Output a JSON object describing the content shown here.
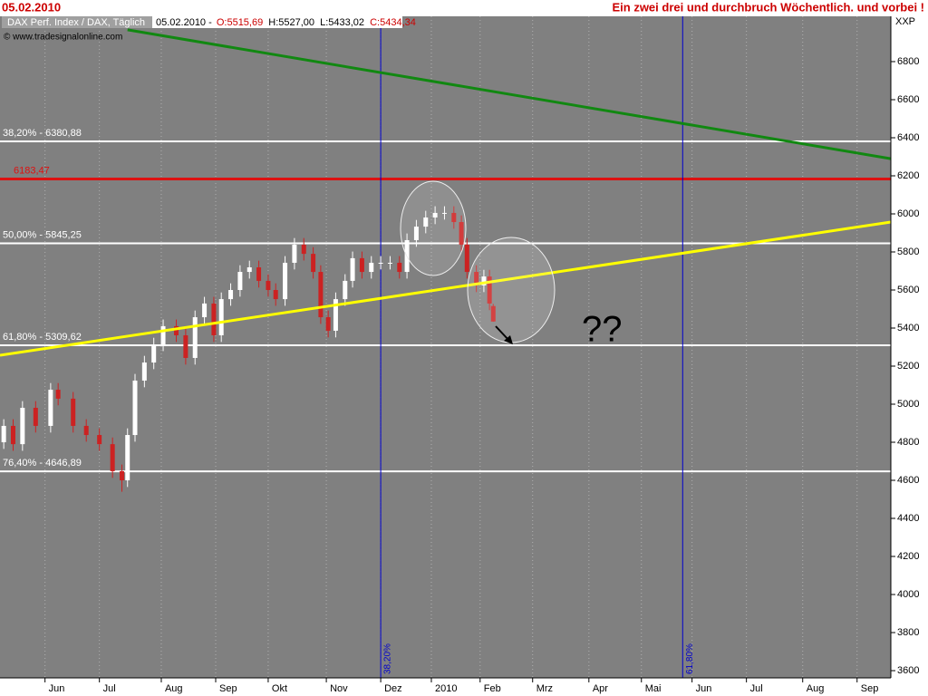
{
  "chart_data": {
    "type": "candlestick",
    "date": "05.02.2010",
    "title": "Ein zwei drei und durchbruch  Wöchentlich. und vorbei !",
    "instrument": "DAX Perf. Index / DAX, Täglich",
    "ohlc_header": [
      "05.02.2010 -",
      "O:5515,69",
      "H:5527,00",
      "L:5433,02",
      "C:5434,34"
    ],
    "copyright": "© www.tradesignalonline.com",
    "axis_unit": "XXP",
    "annotation": "??",
    "up_color": "#ffffff",
    "down_color": "#cc2222",
    "x": [
      2,
      7,
      12,
      19,
      27,
      31,
      39,
      46,
      53,
      60,
      65,
      68,
      72,
      77,
      82,
      87,
      94,
      99,
      104,
      109,
      114,
      118,
      123,
      128,
      133,
      138,
      143,
      147,
      152,
      157,
      162,
      167,
      171,
      175,
      179,
      184,
      188,
      193,
      198,
      203,
      208,
      213,
      217,
      222,
      227,
      232,
      237,
      242,
      246,
      249,
      254,
      258,
      261,
      263
    ],
    "open": [
      4800,
      4886,
      4790,
      4981,
      4886,
      5076,
      5029,
      4886,
      4838,
      4790,
      4648,
      4600,
      4838,
      5124,
      5219,
      5314,
      5410,
      5362,
      5243,
      5457,
      5529,
      5362,
      5552,
      5600,
      5695,
      5719,
      5648,
      5600,
      5552,
      5743,
      5838,
      5790,
      5695,
      5457,
      5386,
      5552,
      5648,
      5767,
      5695,
      5743,
      5743,
      5743,
      5695,
      5862,
      5933,
      5981,
      6005,
      6005,
      5957,
      5838,
      5695,
      5624,
      5671,
      5515.69
    ],
    "high": [
      4921,
      4921,
      5016,
      5016,
      5111,
      5111,
      5064,
      4921,
      4873,
      4825,
      4683,
      4873,
      5159,
      5254,
      5349,
      5445,
      5445,
      5397,
      5492,
      5564,
      5564,
      5587,
      5635,
      5730,
      5754,
      5754,
      5683,
      5635,
      5778,
      5873,
      5873,
      5825,
      5730,
      5492,
      5587,
      5683,
      5802,
      5802,
      5778,
      5778,
      5778,
      5778,
      5897,
      5968,
      6016,
      6040,
      6040,
      6040,
      5992,
      5873,
      5730,
      5706,
      5706,
      5527
    ],
    "low": [
      4765,
      4755,
      4755,
      4851,
      4851,
      4994,
      4851,
      4803,
      4755,
      4613,
      4540,
      4565,
      4803,
      5089,
      5184,
      5279,
      5327,
      5208,
      5208,
      5422,
      5327,
      5327,
      5517,
      5565,
      5660,
      5613,
      5565,
      5517,
      5517,
      5708,
      5755,
      5660,
      5422,
      5351,
      5351,
      5517,
      5613,
      5660,
      5660,
      5708,
      5708,
      5660,
      5660,
      5827,
      5898,
      5946,
      5970,
      5922,
      5803,
      5660,
      5589,
      5589,
      5494,
      5433.02
    ],
    "close": [
      4886,
      4790,
      4981,
      4886,
      5076,
      5029,
      4886,
      4838,
      4790,
      4648,
      4600,
      4838,
      5124,
      5219,
      5314,
      5410,
      5362,
      5243,
      5457,
      5529,
      5362,
      5552,
      5600,
      5695,
      5719,
      5648,
      5600,
      5552,
      5743,
      5838,
      5790,
      5695,
      5457,
      5386,
      5552,
      5648,
      5767,
      5695,
      5743,
      5743,
      5743,
      5695,
      5862,
      5933,
      5981,
      6005,
      6005,
      5957,
      5838,
      5695,
      5624,
      5671,
      5529,
      5434.34
    ],
    "xlim": [
      0,
      475
    ],
    "ylim": [
      3562,
      7038
    ],
    "xticks": [
      {
        "value": 24,
        "label": "Jun"
      },
      {
        "value": 53,
        "label": "Jul"
      },
      {
        "value": 86,
        "label": "Aug"
      },
      {
        "value": 115,
        "label": "Sep"
      },
      {
        "value": 143,
        "label": "Okt"
      },
      {
        "value": 174,
        "label": "Nov"
      },
      {
        "value": 203,
        "label": "Dez"
      },
      {
        "value": 230,
        "label": "2010"
      },
      {
        "value": 256,
        "label": "Feb"
      },
      {
        "value": 284,
        "label": "Mrz"
      },
      {
        "value": 314,
        "label": "Apr"
      },
      {
        "value": 342,
        "label": "Mai"
      },
      {
        "value": 369,
        "label": "Jun"
      },
      {
        "value": 398,
        "label": "Jul"
      },
      {
        "value": 428,
        "label": "Aug"
      },
      {
        "value": 457,
        "label": "Sep"
      }
    ],
    "yticks": [
      3600,
      3800,
      4000,
      4200,
      4400,
      4600,
      4800,
      5000,
      5200,
      5400,
      5600,
      5800,
      6000,
      6200,
      6400,
      6600,
      6800
    ],
    "grid": true,
    "levels": [
      {
        "value": 6380.88,
        "label": "38,20% - 6380,88",
        "color": "#ffffff"
      },
      {
        "value": 6183.47,
        "label": "6183,47",
        "color": "#dd1111"
      },
      {
        "value": 5845.25,
        "label": "50,00% - 5845,25",
        "color": "#ffffff"
      },
      {
        "value": 5309.62,
        "label": "61,80% - 5309,62",
        "color": "#ffffff"
      },
      {
        "value": 4646.89,
        "label": "76,40% - 4646,89",
        "color": "#ffffff"
      }
    ],
    "trendlines": [
      {
        "color": "#118811",
        "x": [
          68,
          475
        ],
        "y": [
          6967,
          6290
        ]
      },
      {
        "color": "#ffff00",
        "x": [
          0,
          475
        ],
        "y": [
          5257,
          5957
        ]
      }
    ],
    "vlines": [
      {
        "x": 203,
        "label": "38,20%",
        "color": "#0000cc"
      },
      {
        "x": 364,
        "label": "61,80%",
        "color": "#0000cc"
      }
    ]
  }
}
